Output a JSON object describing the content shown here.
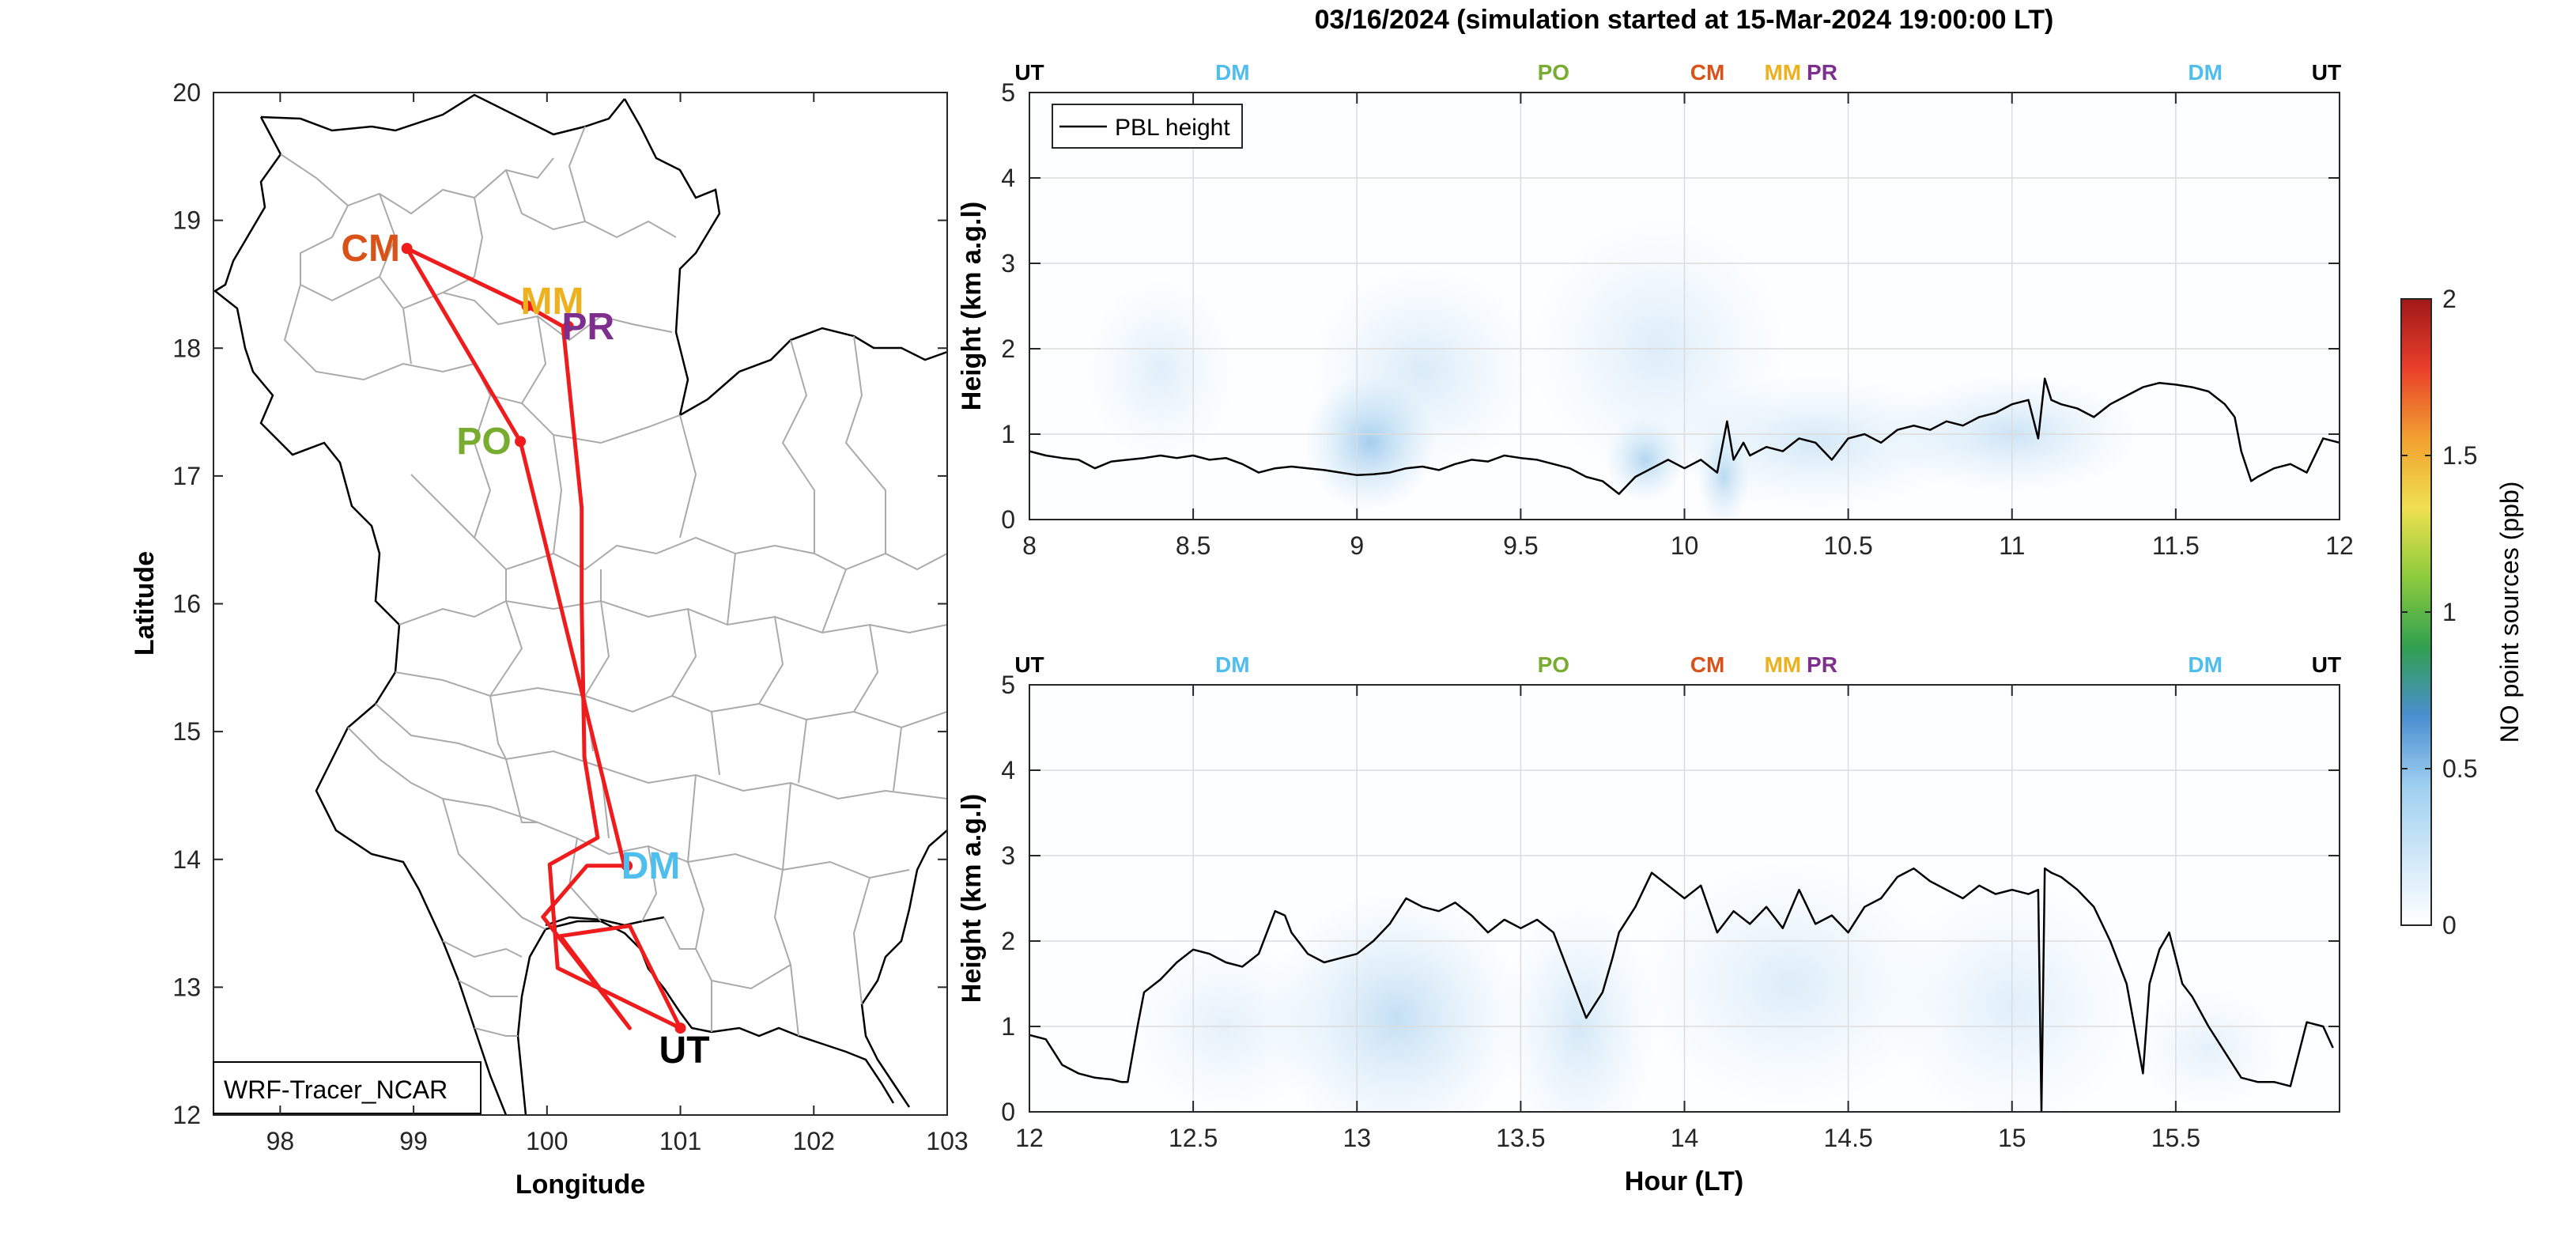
{
  "figure": {
    "title": "03/16/2024 (simulation started at 15-Mar-2024 19:00:00 LT)"
  },
  "map": {
    "xlabel": "Longitude",
    "ylabel": "Latitude",
    "xticks": [
      "98",
      "99",
      "100",
      "101",
      "102",
      "103"
    ],
    "yticks": [
      "12",
      "13",
      "14",
      "15",
      "16",
      "17",
      "18",
      "19",
      "20"
    ],
    "xlim": [
      97.5,
      103
    ],
    "ylim": [
      12,
      20
    ],
    "label_box": "WRF-Tracer_NCAR",
    "route_color": "#ee1c1c",
    "route": [
      [
        101.0,
        12.68
      ],
      [
        100.08,
        13.15
      ],
      [
        100.02,
        13.96
      ],
      [
        100.38,
        14.17
      ],
      [
        100.28,
        14.8
      ],
      [
        100.26,
        16.0
      ],
      [
        100.26,
        16.75
      ],
      [
        100.12,
        18.17
      ],
      [
        99.85,
        18.33
      ],
      [
        98.95,
        18.78
      ],
      [
        99.8,
        17.27
      ],
      [
        100.58,
        13.95
      ],
      [
        100.3,
        13.95
      ],
      [
        99.97,
        13.55
      ],
      [
        100.62,
        12.68
      ],
      [
        100.1,
        13.4
      ],
      [
        100.62,
        13.48
      ],
      [
        101.0,
        12.68
      ]
    ],
    "sites": [
      {
        "code": "CM",
        "lon": 98.95,
        "lat": 18.78,
        "color": "#d95319",
        "label_dx": -46,
        "label_dy": 0
      },
      {
        "code": "MM",
        "lon": 99.85,
        "lat": 18.33,
        "color": "#edb120",
        "label_dx": 32,
        "label_dy": -6
      },
      {
        "code": "PR",
        "lon": 100.16,
        "lat": 18.17,
        "color": "#7e2f8e",
        "label_dx": 25,
        "label_dy": 0
      },
      {
        "code": "PO",
        "lon": 99.8,
        "lat": 17.27,
        "color": "#77ac30",
        "label_dx": -46,
        "label_dy": 0
      },
      {
        "code": "DM",
        "lon": 100.6,
        "lat": 13.95,
        "color": "#4dbeee",
        "label_dx": 30,
        "label_dy": 0
      },
      {
        "code": "UT",
        "lon": 101.0,
        "lat": 12.68,
        "color": "#000000",
        "label_dx": 5,
        "label_dy": 28
      }
    ]
  },
  "panels": [
    {
      "id": "top",
      "xlim": [
        8,
        12
      ],
      "xticks": [
        "8",
        "8.5",
        "9",
        "9.5",
        "10",
        "10.5",
        "11",
        "11.5",
        "12"
      ],
      "ylim": [
        0,
        5
      ],
      "yticks": [
        "0",
        "1",
        "2",
        "3",
        "4",
        "5"
      ],
      "ylabel": "Height (km a.g.l)",
      "top_labels": [
        {
          "text": "UT",
          "t": 8.0,
          "color": "#000000"
        },
        {
          "text": "DM",
          "t": 8.62,
          "color": "#4dbeee"
        },
        {
          "text": "PO",
          "t": 9.6,
          "color": "#77ac30"
        },
        {
          "text": "CM",
          "t": 10.07,
          "color": "#d95319"
        },
        {
          "text": "MM",
          "t": 10.3,
          "color": "#edb120"
        },
        {
          "text": "PR",
          "t": 10.42,
          "color": "#7e2f8e"
        },
        {
          "text": "DM",
          "t": 11.59,
          "color": "#4dbeee"
        },
        {
          "text": "UT",
          "t": 11.96,
          "color": "#000000"
        }
      ]
    },
    {
      "id": "bottom",
      "xlim": [
        12,
        16
      ],
      "xticks": [
        "12",
        "12.5",
        "13",
        "13.5",
        "14",
        "14.5",
        "15",
        "15.5"
      ],
      "ylim": [
        0,
        5
      ],
      "yticks": [
        "0",
        "1",
        "2",
        "3",
        "4",
        "5"
      ],
      "ylabel": "Height (km a.g.l)",
      "xlabel": "Hour (LT)",
      "top_labels": [
        {
          "text": "UT",
          "t": 12.0,
          "color": "#000000"
        },
        {
          "text": "DM",
          "t": 12.62,
          "color": "#4dbeee"
        },
        {
          "text": "PO",
          "t": 13.6,
          "color": "#77ac30"
        },
        {
          "text": "CM",
          "t": 14.07,
          "color": "#d95319"
        },
        {
          "text": "MM",
          "t": 14.3,
          "color": "#edb120"
        },
        {
          "text": "PR",
          "t": 14.42,
          "color": "#7e2f8e"
        },
        {
          "text": "DM",
          "t": 15.59,
          "color": "#4dbeee"
        },
        {
          "text": "UT",
          "t": 15.96,
          "color": "#000000"
        }
      ]
    }
  ],
  "colorbar": {
    "label": "NO point sources (ppb)",
    "ticks": [
      "0",
      "0.5",
      "1",
      "1.5",
      "2"
    ],
    "range": [
      0,
      2
    ],
    "colors": [
      "#ffffff",
      "#cfe8f8",
      "#9fd0f0",
      "#4a8fd0",
      "#30a050",
      "#8ccc3c",
      "#f0e050",
      "#f2a030",
      "#e8402a",
      "#a01818"
    ]
  },
  "chart_data": [
    {
      "type": "line",
      "title": "03/16/2024 (simulation started at 15-Mar-2024 19:00:00 LT)",
      "xlabel": "",
      "ylabel": "Height (km a.g.l)",
      "xlim": [
        8,
        12
      ],
      "ylim": [
        0,
        5
      ],
      "legend": "top-left",
      "series": [
        {
          "name": "PBL height",
          "color": "#000000",
          "x": [
            8.0,
            8.05,
            8.1,
            8.15,
            8.2,
            8.25,
            8.3,
            8.35,
            8.4,
            8.45,
            8.5,
            8.55,
            8.6,
            8.65,
            8.7,
            8.75,
            8.8,
            8.85,
            8.9,
            8.95,
            9.0,
            9.05,
            9.1,
            9.15,
            9.2,
            9.25,
            9.3,
            9.35,
            9.4,
            9.45,
            9.5,
            9.55,
            9.6,
            9.65,
            9.7,
            9.75,
            9.8,
            9.85,
            9.9,
            9.95,
            10.0,
            10.05,
            10.1,
            10.13,
            10.15,
            10.18,
            10.2,
            10.25,
            10.3,
            10.35,
            10.4,
            10.45,
            10.5,
            10.55,
            10.6,
            10.65,
            10.7,
            10.75,
            10.8,
            10.85,
            10.9,
            10.95,
            11.0,
            11.05,
            11.08,
            11.1,
            11.12,
            11.15,
            11.2,
            11.25,
            11.3,
            11.35,
            11.4,
            11.45,
            11.5,
            11.55,
            11.6,
            11.65,
            11.68,
            11.7,
            11.73,
            11.75,
            11.8,
            11.85,
            11.9,
            11.95,
            12.0
          ],
          "y": [
            0.8,
            0.75,
            0.72,
            0.7,
            0.6,
            0.68,
            0.7,
            0.72,
            0.75,
            0.72,
            0.75,
            0.7,
            0.72,
            0.65,
            0.55,
            0.6,
            0.62,
            0.6,
            0.58,
            0.55,
            0.52,
            0.53,
            0.55,
            0.6,
            0.62,
            0.58,
            0.65,
            0.7,
            0.68,
            0.75,
            0.72,
            0.7,
            0.65,
            0.6,
            0.5,
            0.45,
            0.3,
            0.5,
            0.6,
            0.7,
            0.6,
            0.7,
            0.55,
            1.15,
            0.7,
            0.9,
            0.75,
            0.85,
            0.8,
            0.95,
            0.9,
            0.7,
            0.95,
            1.0,
            0.9,
            1.05,
            1.1,
            1.05,
            1.15,
            1.1,
            1.2,
            1.25,
            1.35,
            1.4,
            0.95,
            1.65,
            1.4,
            1.35,
            1.3,
            1.2,
            1.35,
            1.45,
            1.55,
            1.6,
            1.58,
            1.55,
            1.5,
            1.35,
            1.2,
            0.8,
            0.45,
            0.5,
            0.6,
            0.65,
            0.55,
            0.95,
            0.9
          ]
        }
      ]
    },
    {
      "type": "line",
      "xlabel": "Hour (LT)",
      "ylabel": "Height (km a.g.l)",
      "xlim": [
        12,
        16
      ],
      "ylim": [
        0,
        5
      ],
      "series": [
        {
          "name": "PBL height",
          "color": "#000000",
          "x": [
            12.0,
            12.05,
            12.1,
            12.15,
            12.2,
            12.25,
            12.28,
            12.3,
            12.33,
            12.35,
            12.4,
            12.45,
            12.5,
            12.55,
            12.6,
            12.65,
            12.7,
            12.75,
            12.78,
            12.8,
            12.85,
            12.9,
            12.95,
            13.0,
            13.05,
            13.1,
            13.15,
            13.2,
            13.25,
            13.3,
            13.35,
            13.4,
            13.45,
            13.5,
            13.55,
            13.6,
            13.65,
            13.7,
            13.75,
            13.78,
            13.8,
            13.85,
            13.9,
            13.95,
            14.0,
            14.05,
            14.1,
            14.15,
            14.2,
            14.25,
            14.3,
            14.35,
            14.4,
            14.45,
            14.5,
            14.55,
            14.6,
            14.65,
            14.7,
            14.75,
            14.8,
            14.85,
            14.9,
            14.95,
            15.0,
            15.05,
            15.08,
            15.09,
            15.1,
            15.12,
            15.15,
            15.2,
            15.25,
            15.3,
            15.35,
            15.4,
            15.42,
            15.45,
            15.48,
            15.5,
            15.52,
            15.55,
            15.6,
            15.65,
            15.7,
            15.75,
            15.8,
            15.85,
            15.9,
            15.95,
            15.98
          ],
          "y": [
            0.9,
            0.85,
            0.55,
            0.45,
            0.4,
            0.38,
            0.35,
            0.35,
            1.0,
            1.4,
            1.55,
            1.75,
            1.9,
            1.85,
            1.75,
            1.7,
            1.85,
            2.35,
            2.3,
            2.1,
            1.85,
            1.75,
            1.8,
            1.85,
            2.0,
            2.2,
            2.5,
            2.4,
            2.35,
            2.45,
            2.3,
            2.1,
            2.25,
            2.15,
            2.25,
            2.1,
            1.6,
            1.1,
            1.4,
            1.8,
            2.1,
            2.4,
            2.8,
            2.65,
            2.5,
            2.65,
            2.1,
            2.35,
            2.2,
            2.4,
            2.15,
            2.6,
            2.2,
            2.3,
            2.1,
            2.4,
            2.5,
            2.75,
            2.85,
            2.7,
            2.6,
            2.5,
            2.65,
            2.55,
            2.6,
            2.55,
            2.6,
            0.0,
            2.85,
            2.8,
            2.75,
            2.6,
            2.4,
            2.0,
            1.5,
            0.45,
            1.5,
            1.9,
            2.1,
            1.8,
            1.5,
            1.35,
            1.0,
            0.7,
            0.4,
            0.35,
            0.35,
            0.3,
            1.05,
            1.0,
            0.75
          ]
        }
      ]
    }
  ]
}
